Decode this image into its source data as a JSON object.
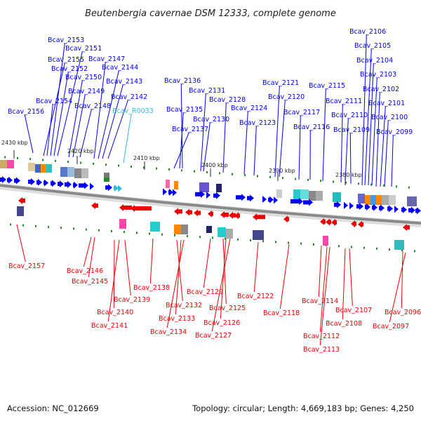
{
  "title": "Beutenbergia cavernae DSM 12333, complete genome",
  "accession": "Accession: NC_012669",
  "summary": "Topology: circular; Length: 4,669,183 bp; Genes: 4,250",
  "colors": {
    "forward": "#0000ee",
    "reverse": "#ee0000",
    "rna": "#33bbdd",
    "backbone": "#888888",
    "tick": "#228822"
  },
  "kbp_marks": [
    "2430 kbp",
    "2420 kbp",
    "2410 kbp",
    "2400 kbp",
    "2390 kbp",
    "2380 kbp"
  ],
  "forward_genes": [
    "Bcav_2156",
    "Bcav_2155",
    "Bcav_2154",
    "Bcav_2153",
    "Bcav_2152",
    "Bcav_2151",
    "Bcav_2150",
    "Bcav_2149",
    "Bcav_2148",
    "Bcav_2147",
    "Bcav_2144",
    "Bcav_2143",
    "Bcav_2142",
    "Bcav_R0033",
    "Bcav_2137",
    "Bcav_2136",
    "Bcav_2135",
    "Bcav_2131",
    "Bcav_2130",
    "Bcav_2128",
    "Bcav_2124",
    "Bcav_2123",
    "Bcav_2121",
    "Bcav_2120",
    "Bcav_2117",
    "Bcav_2116",
    "Bcav_2115",
    "Bcav_2111",
    "Bcav_2110",
    "Bcav_2109",
    "Bcav_2106",
    "Bcav_2105",
    "Bcav_2104",
    "Bcav_2103",
    "Bcav_2102",
    "Bcav_2101",
    "Bcav_2100",
    "Bcav_2099"
  ],
  "reverse_genes": [
    "Bcav_2157",
    "Bcav_2146",
    "Bcav_2145",
    "Bcav_2140",
    "Bcav_2141",
    "Bcav_2139",
    "Bcav_2138",
    "Bcav_2132",
    "Bcav_2133",
    "Bcav_2134",
    "Bcav_2129",
    "Bcav_2125",
    "Bcav_2126",
    "Bcav_2127",
    "Bcav_2122",
    "Bcav_2118",
    "Bcav_2114",
    "Bcav_2112",
    "Bcav_2113",
    "Bcav_2108",
    "Bcav_2107",
    "Bcav_2097",
    "Bcav_2096"
  ]
}
